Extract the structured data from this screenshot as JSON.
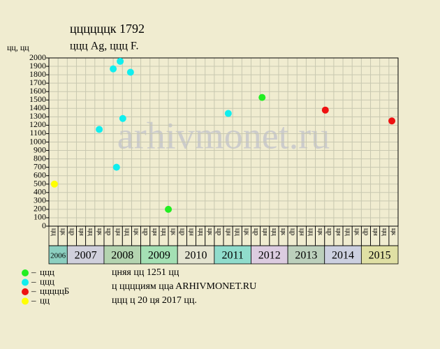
{
  "chart_data": {
    "type": "scatter",
    "title": "ццццццк 1792",
    "subtitle": "ццц Ag, ццц F.",
    "y_label": "цц, цц",
    "watermark": "arhivmonet.ru",
    "xlim": [
      2006.5,
      2016
    ],
    "ylim": [
      0,
      2000
    ],
    "yticks": [
      0,
      100,
      200,
      300,
      400,
      500,
      600,
      700,
      800,
      900,
      1000,
      1100,
      1200,
      1300,
      1400,
      1500,
      1600,
      1700,
      1800,
      1900,
      2000
    ],
    "grid": true,
    "years": [
      {
        "label": "2006",
        "color": "#8ccfc0",
        "quarters": [
          "цц",
          "цк"
        ]
      },
      {
        "label": "2007",
        "color": "#d0d0dc",
        "quarters": [
          "цр",
          "цн",
          "цц",
          "цк"
        ]
      },
      {
        "label": "2008",
        "color": "#b4d4b0",
        "quarters": [
          "цр",
          "цн",
          "цц",
          "цк"
        ]
      },
      {
        "label": "2009",
        "color": "#a4e0b4",
        "quarters": [
          "цр",
          "цн",
          "цц",
          "цк"
        ]
      },
      {
        "label": "2010",
        "color": "#e4e4d0",
        "quarters": [
          "цр",
          "цн",
          "цц",
          "цк"
        ]
      },
      {
        "label": "2011",
        "color": "#90dccc",
        "quarters": [
          "цр",
          "цн",
          "цц",
          "цк"
        ]
      },
      {
        "label": "2012",
        "color": "#dccce0",
        "quarters": [
          "цр",
          "цн",
          "цц",
          "цк"
        ]
      },
      {
        "label": "2013",
        "color": "#bcd0bc",
        "quarters": [
          "цр",
          "цн",
          "цц",
          "цк"
        ]
      },
      {
        "label": "2014",
        "color": "#ccd0e0",
        "quarters": [
          "цр",
          "цн",
          "цц",
          "цк"
        ]
      },
      {
        "label": "2015",
        "color": "#e0e0a4",
        "quarters": [
          "цр",
          "цн",
          "цц",
          "цк"
        ]
      }
    ],
    "series": [
      {
        "name": "ццц",
        "color": "#22ee22",
        "x": [
          2009.75,
          2012.3
        ],
        "values": [
          200,
          1530
        ]
      },
      {
        "name": "ццц",
        "color": "#11eeee",
        "x": [
          2007.87,
          2008.25,
          2008.34,
          2008.44,
          2008.51,
          2008.72,
          2011.38
        ],
        "values": [
          1150,
          1870,
          700,
          1960,
          1280,
          1830,
          1340
        ]
      },
      {
        "name": "цццццБ",
        "color": "#ee1111",
        "x": [
          2014.02,
          2015.83
        ],
        "values": [
          1380,
          1251
        ]
      },
      {
        "name": "цц",
        "color": "#ffff00",
        "x": [
          2006.65
        ],
        "values": [
          500
        ]
      }
    ],
    "notes": [
      "цняя цц 1251 цц",
      "ц цццциям ццa ARHIVMONET.RU",
      "ццц ц 20 ця 2017 цц."
    ]
  }
}
